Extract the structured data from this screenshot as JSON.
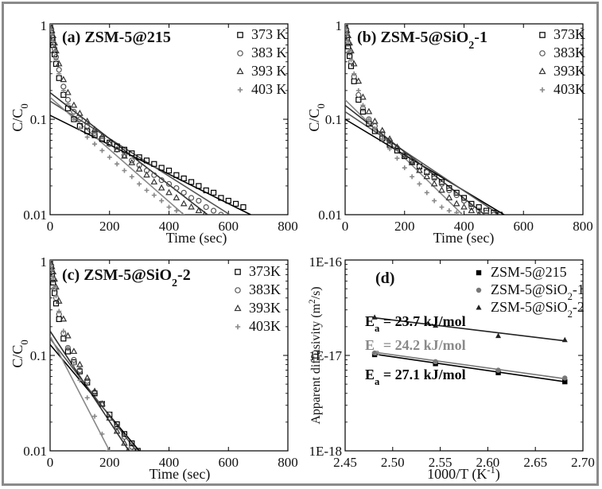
{
  "chart_data": [
    {
      "panel": "a",
      "type": "scatter",
      "title": "(a) ZSM-5@215",
      "xlabel": "Time (sec)",
      "ylabel": "C/C0",
      "yscale": "log",
      "xlim": [
        0,
        800
      ],
      "ylim": [
        0.01,
        1
      ],
      "x_ticks": [
        "0",
        "200",
        "400",
        "600",
        "800"
      ],
      "y_ticks": [
        "1",
        "0.1",
        "0.01"
      ],
      "legend": "top-right",
      "series": [
        {
          "name": "373 K",
          "marker": "square",
          "color": "#000000",
          "fit": [
            [
              0,
              0.11
            ],
            [
              675,
              0.01
            ]
          ],
          "x": [
            0,
            3,
            6,
            10,
            15,
            20,
            30,
            45,
            60,
            80,
            100,
            125,
            150,
            175,
            200,
            225,
            250,
            275,
            300,
            325,
            350,
            375,
            400,
            425,
            450,
            475,
            500,
            525,
            550,
            575,
            600,
            625,
            650
          ],
          "y": [
            1.0,
            0.85,
            0.72,
            0.6,
            0.48,
            0.38,
            0.27,
            0.18,
            0.13,
            0.1,
            0.085,
            0.075,
            0.068,
            0.062,
            0.057,
            0.052,
            0.048,
            0.044,
            0.04,
            0.037,
            0.034,
            0.031,
            0.029,
            0.026,
            0.024,
            0.022,
            0.02,
            0.018,
            0.017,
            0.015,
            0.014,
            0.013,
            0.012
          ]
        },
        {
          "name": "383 K",
          "marker": "circle",
          "color": "#555555",
          "fit": [
            [
              0,
              0.155
            ],
            [
              605,
              0.01
            ]
          ],
          "x": [
            0,
            3,
            6,
            10,
            15,
            20,
            30,
            45,
            60,
            80,
            100,
            125,
            150,
            175,
            200,
            225,
            250,
            275,
            300,
            325,
            350,
            375,
            400,
            425,
            450,
            475,
            500,
            525,
            550,
            575
          ],
          "y": [
            1.0,
            0.9,
            0.8,
            0.68,
            0.55,
            0.45,
            0.33,
            0.22,
            0.16,
            0.12,
            0.1,
            0.085,
            0.072,
            0.063,
            0.055,
            0.048,
            0.042,
            0.037,
            0.033,
            0.029,
            0.026,
            0.023,
            0.021,
            0.019,
            0.017,
            0.015,
            0.014,
            0.012,
            0.011,
            0.01
          ]
        },
        {
          "name": "393 K",
          "marker": "triangle",
          "color": "#333333",
          "fit": [
            [
              0,
              0.19
            ],
            [
              530,
              0.01
            ]
          ],
          "x": [
            0,
            3,
            6,
            10,
            15,
            20,
            30,
            45,
            60,
            80,
            100,
            125,
            150,
            175,
            200,
            225,
            250,
            275,
            300,
            325,
            350,
            375,
            400,
            425,
            450,
            475,
            500,
            520
          ],
          "y": [
            1.0,
            0.92,
            0.85,
            0.75,
            0.63,
            0.52,
            0.38,
            0.26,
            0.19,
            0.14,
            0.115,
            0.095,
            0.078,
            0.066,
            0.056,
            0.048,
            0.041,
            0.035,
            0.03,
            0.026,
            0.022,
            0.019,
            0.017,
            0.015,
            0.013,
            0.012,
            0.011,
            0.01
          ]
        },
        {
          "name": "403 K",
          "marker": "plus",
          "color": "#888888",
          "fit": [
            [
              0,
              0.17
            ],
            [
              450,
              0.01
            ]
          ],
          "x": [
            0,
            3,
            6,
            10,
            15,
            20,
            30,
            45,
            60,
            80,
            100,
            125,
            150,
            175,
            200,
            225,
            250,
            275,
            300,
            325,
            350,
            375,
            400,
            425,
            445
          ],
          "y": [
            1.0,
            0.88,
            0.78,
            0.65,
            0.52,
            0.42,
            0.3,
            0.2,
            0.145,
            0.1,
            0.08,
            0.065,
            0.055,
            0.047,
            0.04,
            0.034,
            0.029,
            0.025,
            0.021,
            0.018,
            0.016,
            0.014,
            0.012,
            0.011,
            0.01
          ]
        }
      ]
    },
    {
      "panel": "b",
      "type": "scatter",
      "title": "(b) ZSM-5@SiO₂-1",
      "xlabel": "Time (sec)",
      "ylabel": "C/C0",
      "yscale": "log",
      "xlim": [
        0,
        800
      ],
      "ylim": [
        0.01,
        1
      ],
      "x_ticks": [
        "0",
        "200",
        "400",
        "600",
        "800"
      ],
      "y_ticks": [
        "1",
        "0.1",
        "0.01"
      ],
      "legend": "top-right",
      "series": [
        {
          "name": "373K",
          "marker": "square",
          "color": "#000000",
          "fit": [
            [
              0,
              0.1
            ],
            [
              535,
              0.01
            ]
          ],
          "x": [
            0,
            3,
            6,
            10,
            15,
            20,
            30,
            45,
            60,
            80,
            100,
            125,
            150,
            175,
            200,
            225,
            250,
            275,
            300,
            325,
            350,
            375,
            400,
            425,
            450,
            475,
            500,
            520
          ],
          "y": [
            1.0,
            0.85,
            0.72,
            0.58,
            0.46,
            0.36,
            0.25,
            0.16,
            0.12,
            0.09,
            0.075,
            0.063,
            0.054,
            0.047,
            0.041,
            0.036,
            0.032,
            0.028,
            0.025,
            0.022,
            0.019,
            0.017,
            0.015,
            0.013,
            0.012,
            0.011,
            0.0105,
            0.01
          ]
        },
        {
          "name": "383K",
          "marker": "circle",
          "color": "#555555",
          "fit": [
            [
              0,
              0.12
            ],
            [
              520,
              0.01
            ]
          ],
          "x": [
            0,
            3,
            6,
            10,
            15,
            20,
            30,
            45,
            60,
            80,
            100,
            125,
            150,
            175,
            200,
            225,
            250,
            275,
            300,
            325,
            350,
            375,
            400,
            425,
            450,
            475,
            500
          ],
          "y": [
            1.0,
            0.88,
            0.76,
            0.62,
            0.5,
            0.4,
            0.28,
            0.18,
            0.13,
            0.1,
            0.085,
            0.07,
            0.059,
            0.05,
            0.043,
            0.037,
            0.032,
            0.028,
            0.024,
            0.021,
            0.018,
            0.016,
            0.014,
            0.012,
            0.011,
            0.0105,
            0.01
          ]
        },
        {
          "name": "393K",
          "marker": "triangle",
          "color": "#333333",
          "fit": [
            [
              0,
              0.14
            ],
            [
              470,
              0.01
            ]
          ],
          "x": [
            0,
            3,
            6,
            10,
            15,
            20,
            30,
            45,
            60,
            80,
            100,
            125,
            150,
            175,
            200,
            225,
            250,
            275,
            300,
            325,
            350,
            375,
            400,
            425,
            450
          ],
          "y": [
            1.0,
            0.92,
            0.85,
            0.75,
            0.63,
            0.52,
            0.38,
            0.25,
            0.17,
            0.12,
            0.095,
            0.076,
            0.062,
            0.051,
            0.042,
            0.035,
            0.029,
            0.025,
            0.021,
            0.018,
            0.015,
            0.013,
            0.012,
            0.011,
            0.01
          ]
        },
        {
          "name": "403K",
          "marker": "plus",
          "color": "#888888",
          "fit": [
            [
              0,
              0.16
            ],
            [
              395,
              0.01
            ]
          ],
          "x": [
            0,
            3,
            6,
            10,
            15,
            20,
            30,
            45,
            60,
            80,
            100,
            125,
            150,
            175,
            200,
            225,
            250,
            275,
            300,
            325,
            350,
            375,
            390
          ],
          "y": [
            1.0,
            0.88,
            0.78,
            0.65,
            0.52,
            0.42,
            0.3,
            0.2,
            0.14,
            0.1,
            0.08,
            0.062,
            0.049,
            0.039,
            0.031,
            0.025,
            0.021,
            0.017,
            0.014,
            0.012,
            0.011,
            0.0105,
            0.01
          ]
        }
      ]
    },
    {
      "panel": "c",
      "type": "scatter",
      "title": "(c) ZSM-5@SiO₂-2",
      "xlabel": "Time (sec)",
      "ylabel": "C/C0",
      "yscale": "log",
      "xlim": [
        0,
        800
      ],
      "ylim": [
        0.01,
        1
      ],
      "x_ticks": [
        "0",
        "200",
        "400",
        "600",
        "800"
      ],
      "y_ticks": [
        "1",
        "0.1",
        "0.01"
      ],
      "legend": "top-right",
      "series": [
        {
          "name": "373K",
          "marker": "square",
          "color": "#000000",
          "fit": [
            [
              0,
              0.13
            ],
            [
              300,
              0.01
            ]
          ],
          "x": [
            0,
            3,
            6,
            10,
            15,
            20,
            30,
            45,
            60,
            80,
            100,
            125,
            150,
            175,
            200,
            225,
            250,
            275,
            295
          ],
          "y": [
            1.0,
            0.85,
            0.72,
            0.58,
            0.45,
            0.35,
            0.24,
            0.15,
            0.11,
            0.085,
            0.068,
            0.052,
            0.04,
            0.031,
            0.024,
            0.019,
            0.015,
            0.012,
            0.01
          ]
        },
        {
          "name": "383K",
          "marker": "circle",
          "color": "#555555",
          "fit": [
            [
              0,
              0.15
            ],
            [
              290,
              0.01
            ]
          ],
          "x": [
            0,
            3,
            6,
            10,
            15,
            20,
            30,
            45,
            60,
            80,
            100,
            125,
            150,
            175,
            200,
            225,
            250,
            275,
            285
          ],
          "y": [
            1.0,
            0.88,
            0.76,
            0.62,
            0.5,
            0.4,
            0.27,
            0.17,
            0.12,
            0.09,
            0.07,
            0.054,
            0.041,
            0.031,
            0.024,
            0.018,
            0.014,
            0.011,
            0.01
          ]
        },
        {
          "name": "393K",
          "marker": "triangle",
          "color": "#333333",
          "fit": [
            [
              0,
              0.18
            ],
            [
              265,
              0.01
            ]
          ],
          "x": [
            0,
            3,
            6,
            10,
            15,
            20,
            30,
            45,
            60,
            80,
            100,
            125,
            150,
            175,
            200,
            225,
            250,
            262
          ],
          "y": [
            1.0,
            0.92,
            0.85,
            0.75,
            0.63,
            0.52,
            0.37,
            0.24,
            0.16,
            0.11,
            0.08,
            0.058,
            0.042,
            0.031,
            0.022,
            0.016,
            0.012,
            0.01
          ]
        },
        {
          "name": "403K",
          "marker": "plus",
          "color": "#888888",
          "fit": [
            [
              0,
              0.16
            ],
            [
              200,
              0.01
            ]
          ],
          "x": [
            0,
            3,
            6,
            10,
            15,
            20,
            30,
            45,
            60,
            80,
            100,
            125,
            150,
            175,
            195
          ],
          "y": [
            1.0,
            0.88,
            0.78,
            0.65,
            0.52,
            0.42,
            0.29,
            0.18,
            0.12,
            0.08,
            0.055,
            0.036,
            0.023,
            0.015,
            0.01
          ]
        }
      ]
    },
    {
      "panel": "d",
      "type": "scatter",
      "title": "(d)",
      "xlabel": "1000/T (K⁻¹)",
      "ylabel": "Apparent diffusivity (m²/s)",
      "yscale": "log",
      "xlim": [
        2.45,
        2.7
      ],
      "ylim": [
        1e-18,
        1e-16
      ],
      "x_ticks": [
        "2.45",
        "2.50",
        "2.55",
        "2.60",
        "2.65",
        "2.70"
      ],
      "y_ticks": [
        "1E-16",
        "1E-17",
        "1E-18"
      ],
      "legend": "top-right",
      "annotations": [
        "Eₐ = 23.7 kJ/mol",
        "Eₐ = 24.2 kJ/mol",
        "Eₐ = 27.1 kJ/mol"
      ],
      "series": [
        {
          "name": "ZSM-5@215",
          "marker": "square",
          "color": "#000000",
          "x": [
            2.481,
            2.545,
            2.611,
            2.681
          ],
          "y": [
            1.02e-17,
            8.2e-18,
            6.6e-18,
            5.3e-18
          ],
          "fit": [
            [
              2.481,
              1.03e-17
            ],
            [
              2.681,
              5.3e-18
            ]
          ]
        },
        {
          "name": "ZSM-5@SiO₂-1",
          "marker": "circle",
          "color": "#777777",
          "x": [
            2.481,
            2.545,
            2.611,
            2.681
          ],
          "y": [
            1.06e-17,
            8.6e-18,
            7e-18,
            5.8e-18
          ],
          "fit": [
            [
              2.481,
              1.08e-17
            ],
            [
              2.681,
              5.7e-18
            ]
          ]
        },
        {
          "name": "ZSM-5@SiO₂-2",
          "marker": "triangle",
          "color": "#222222",
          "x": [
            2.481,
            2.545,
            2.611,
            2.681
          ],
          "y": [
            2.5e-17,
            2.05e-17,
            1.6e-17,
            1.45e-17
          ],
          "fit": [
            [
              2.481,
              2.48e-17
            ],
            [
              2.681,
              1.42e-17
            ]
          ]
        }
      ]
    }
  ],
  "ylabel_cc0_parts": {
    "main": "C/C",
    "sub": "0"
  },
  "ylabel_d_parts": {
    "main": "Apparent diffusivity (m",
    "sup": "2",
    "tail": "/s)"
  },
  "xlabel_d_parts": {
    "main": "1000/T (K",
    "sup": "-1",
    "tail": ")"
  },
  "title_parts": {
    "b_main": "(b) ZSM-5@SiO",
    "b_sub": "2",
    "b_tail": "-1",
    "c_main": "(c) ZSM-5@SiO",
    "c_sub": "2",
    "c_tail": "-2"
  },
  "annotation_parts": [
    {
      "pre": "E",
      "sub": "a",
      "post": " = 23.7 kJ/mol",
      "color": "#000000"
    },
    {
      "pre": "E",
      "sub": "a",
      "post": " = 24.2 kJ/mol",
      "color": "#8a8a8a"
    },
    {
      "pre": "E",
      "sub": "a",
      "post": " = 27.1 kJ/mol",
      "color": "#000000"
    }
  ],
  "legend_d_parts": [
    {
      "main": "ZSM-5@215"
    },
    {
      "main": "ZSM-5@SiO",
      "sub": "2",
      "tail": "-1"
    },
    {
      "main": "ZSM-5@SiO",
      "sub": "2",
      "tail": "-2"
    }
  ]
}
